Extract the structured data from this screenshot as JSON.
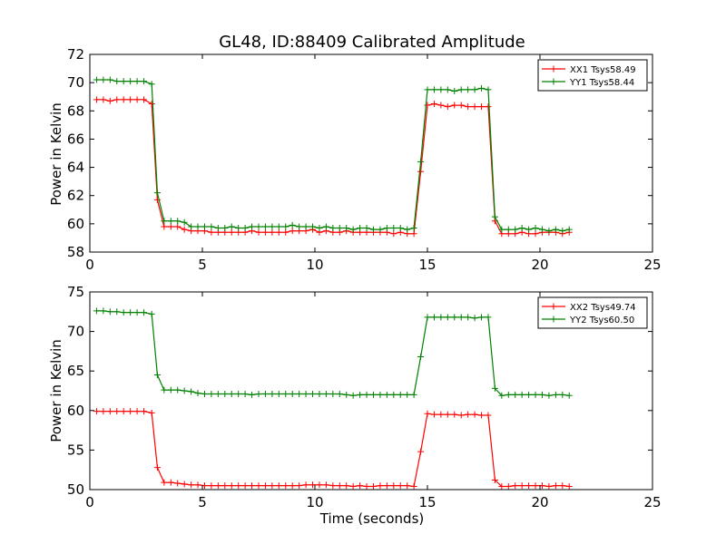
{
  "chart_data": [
    {
      "type": "line",
      "title": "GL48, ID:88409 Calibrated Amplitude",
      "xlabel": "",
      "ylabel": "Power in Kelvin",
      "xlim": [
        0,
        25
      ],
      "ylim": [
        58,
        72
      ],
      "xticks": [
        0,
        5,
        10,
        15,
        20,
        25
      ],
      "yticks": [
        58,
        60,
        62,
        64,
        66,
        68,
        70,
        72
      ],
      "grid": false,
      "legend": "top-right",
      "series": [
        {
          "name": "XX1 Tsys58.49",
          "color": "#ff0000",
          "x": [
            0.3,
            0.6,
            0.9,
            1.2,
            1.5,
            1.8,
            2.1,
            2.4,
            2.75,
            3.0,
            3.3,
            3.6,
            3.9,
            4.2,
            4.5,
            4.8,
            5.1,
            5.4,
            5.7,
            6.0,
            6.3,
            6.6,
            6.9,
            7.2,
            7.5,
            7.8,
            8.1,
            8.4,
            8.7,
            9.0,
            9.3,
            9.6,
            9.9,
            10.2,
            10.5,
            10.8,
            11.1,
            11.4,
            11.7,
            12.0,
            12.3,
            12.6,
            12.9,
            13.2,
            13.5,
            13.8,
            14.1,
            14.4,
            14.7,
            15.0,
            15.3,
            15.6,
            15.9,
            16.2,
            16.5,
            16.8,
            17.1,
            17.4,
            17.7,
            18.0,
            18.3,
            18.6,
            18.9,
            19.2,
            19.5,
            19.8,
            20.1,
            20.4,
            20.7,
            21.0,
            21.3
          ],
          "y": [
            68.8,
            68.8,
            68.7,
            68.8,
            68.8,
            68.8,
            68.8,
            68.8,
            68.5,
            61.7,
            59.8,
            59.8,
            59.8,
            59.6,
            59.5,
            59.5,
            59.5,
            59.4,
            59.4,
            59.4,
            59.4,
            59.4,
            59.4,
            59.5,
            59.4,
            59.4,
            59.4,
            59.4,
            59.4,
            59.5,
            59.5,
            59.5,
            59.6,
            59.4,
            59.5,
            59.4,
            59.4,
            59.5,
            59.4,
            59.4,
            59.4,
            59.4,
            59.4,
            59.4,
            59.3,
            59.4,
            59.3,
            59.3,
            63.7,
            68.4,
            68.5,
            68.4,
            68.3,
            68.4,
            68.4,
            68.3,
            68.3,
            68.3,
            68.3,
            60.2,
            59.3,
            59.3,
            59.3,
            59.4,
            59.3,
            59.3,
            59.4,
            59.4,
            59.4,
            59.3,
            59.4
          ]
        },
        {
          "name": "YY1 Tsys58.44",
          "color": "#008000",
          "x": [
            0.3,
            0.6,
            0.9,
            1.2,
            1.5,
            1.8,
            2.1,
            2.4,
            2.75,
            3.0,
            3.3,
            3.6,
            3.9,
            4.2,
            4.5,
            4.8,
            5.1,
            5.4,
            5.7,
            6.0,
            6.3,
            6.6,
            6.9,
            7.2,
            7.5,
            7.8,
            8.1,
            8.4,
            8.7,
            9.0,
            9.3,
            9.6,
            9.9,
            10.2,
            10.5,
            10.8,
            11.1,
            11.4,
            11.7,
            12.0,
            12.3,
            12.6,
            12.9,
            13.2,
            13.5,
            13.8,
            14.1,
            14.4,
            14.7,
            15.0,
            15.3,
            15.6,
            15.9,
            16.2,
            16.5,
            16.8,
            17.1,
            17.4,
            17.7,
            18.0,
            18.3,
            18.6,
            18.9,
            19.2,
            19.5,
            19.8,
            20.1,
            20.4,
            20.7,
            21.0,
            21.3
          ],
          "y": [
            70.2,
            70.2,
            70.2,
            70.1,
            70.1,
            70.1,
            70.1,
            70.1,
            69.9,
            62.2,
            60.2,
            60.2,
            60.2,
            60.1,
            59.8,
            59.8,
            59.8,
            59.8,
            59.7,
            59.7,
            59.8,
            59.7,
            59.7,
            59.8,
            59.8,
            59.8,
            59.8,
            59.8,
            59.8,
            59.9,
            59.8,
            59.8,
            59.8,
            59.7,
            59.8,
            59.7,
            59.7,
            59.7,
            59.6,
            59.7,
            59.7,
            59.6,
            59.6,
            59.7,
            59.7,
            59.7,
            59.6,
            59.7,
            64.4,
            69.5,
            69.5,
            69.5,
            69.5,
            69.4,
            69.5,
            69.5,
            69.5,
            69.6,
            69.5,
            60.5,
            59.6,
            59.6,
            59.6,
            59.7,
            59.6,
            59.7,
            59.6,
            59.5,
            59.6,
            59.5,
            59.6
          ]
        }
      ]
    },
    {
      "type": "line",
      "title": "",
      "xlabel": "Time (seconds)",
      "ylabel": "Power in Kelvin",
      "xlim": [
        0,
        25
      ],
      "ylim": [
        50,
        75
      ],
      "xticks": [
        0,
        5,
        10,
        15,
        20,
        25
      ],
      "yticks": [
        50,
        55,
        60,
        65,
        70,
        75
      ],
      "grid": false,
      "legend": "top-right",
      "series": [
        {
          "name": "XX2 Tsys49.74",
          "color": "#ff0000",
          "x": [
            0.3,
            0.6,
            0.9,
            1.2,
            1.5,
            1.8,
            2.1,
            2.4,
            2.75,
            3.0,
            3.3,
            3.6,
            3.9,
            4.2,
            4.5,
            4.8,
            5.1,
            5.4,
            5.7,
            6.0,
            6.3,
            6.6,
            6.9,
            7.2,
            7.5,
            7.8,
            8.1,
            8.4,
            8.7,
            9.0,
            9.3,
            9.6,
            9.9,
            10.2,
            10.5,
            10.8,
            11.1,
            11.4,
            11.7,
            12.0,
            12.3,
            12.6,
            12.9,
            13.2,
            13.5,
            13.8,
            14.1,
            14.4,
            14.7,
            15.0,
            15.3,
            15.6,
            15.9,
            16.2,
            16.5,
            16.8,
            17.1,
            17.4,
            17.7,
            18.0,
            18.3,
            18.6,
            18.9,
            19.2,
            19.5,
            19.8,
            20.1,
            20.4,
            20.7,
            21.0,
            21.3
          ],
          "y": [
            59.9,
            59.9,
            59.9,
            59.9,
            59.9,
            59.9,
            59.9,
            59.9,
            59.7,
            52.8,
            50.9,
            50.9,
            50.8,
            50.7,
            50.6,
            50.6,
            50.5,
            50.5,
            50.5,
            50.5,
            50.5,
            50.5,
            50.5,
            50.5,
            50.5,
            50.5,
            50.5,
            50.5,
            50.5,
            50.5,
            50.5,
            50.6,
            50.6,
            50.6,
            50.6,
            50.5,
            50.5,
            50.5,
            50.4,
            50.5,
            50.4,
            50.4,
            50.5,
            50.5,
            50.5,
            50.5,
            50.5,
            50.4,
            54.8,
            59.6,
            59.5,
            59.5,
            59.5,
            59.5,
            59.4,
            59.5,
            59.5,
            59.4,
            59.4,
            51.2,
            50.4,
            50.4,
            50.5,
            50.5,
            50.5,
            50.5,
            50.5,
            50.4,
            50.5,
            50.5,
            50.4
          ]
        },
        {
          "name": "YY2 Tsys60.50",
          "color": "#008000",
          "x": [
            0.3,
            0.6,
            0.9,
            1.2,
            1.5,
            1.8,
            2.1,
            2.4,
            2.75,
            3.0,
            3.3,
            3.6,
            3.9,
            4.2,
            4.5,
            4.8,
            5.1,
            5.4,
            5.7,
            6.0,
            6.3,
            6.6,
            6.9,
            7.2,
            7.5,
            7.8,
            8.1,
            8.4,
            8.7,
            9.0,
            9.3,
            9.6,
            9.9,
            10.2,
            10.5,
            10.8,
            11.1,
            11.4,
            11.7,
            12.0,
            12.3,
            12.6,
            12.9,
            13.2,
            13.5,
            13.8,
            14.1,
            14.4,
            14.7,
            15.0,
            15.3,
            15.6,
            15.9,
            16.2,
            16.5,
            16.8,
            17.1,
            17.4,
            17.7,
            18.0,
            18.3,
            18.6,
            18.9,
            19.2,
            19.5,
            19.8,
            20.1,
            20.4,
            20.7,
            21.0,
            21.3
          ],
          "y": [
            72.6,
            72.6,
            72.5,
            72.5,
            72.4,
            72.4,
            72.4,
            72.4,
            72.2,
            64.5,
            62.6,
            62.6,
            62.6,
            62.5,
            62.4,
            62.2,
            62.1,
            62.1,
            62.1,
            62.1,
            62.1,
            62.1,
            62.1,
            62.0,
            62.1,
            62.1,
            62.1,
            62.1,
            62.1,
            62.1,
            62.1,
            62.1,
            62.1,
            62.1,
            62.1,
            62.1,
            62.1,
            62.0,
            61.9,
            62.0,
            62.0,
            62.0,
            62.0,
            62.0,
            62.0,
            62.0,
            62.0,
            62.0,
            66.8,
            71.8,
            71.8,
            71.8,
            71.8,
            71.8,
            71.8,
            71.8,
            71.7,
            71.8,
            71.8,
            62.8,
            61.9,
            62.0,
            62.0,
            62.0,
            62.0,
            62.0,
            62.0,
            61.9,
            62.0,
            62.0,
            61.9
          ]
        }
      ]
    }
  ]
}
